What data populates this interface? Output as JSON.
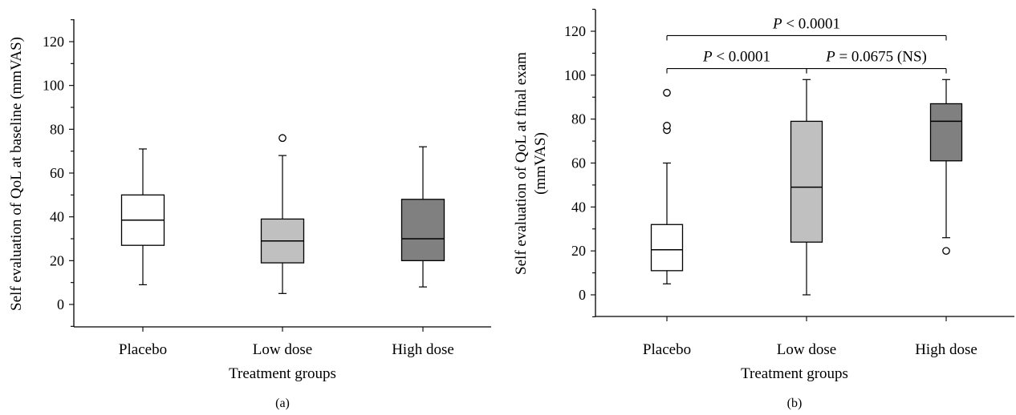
{
  "chart_data": [
    {
      "type": "box",
      "panel_label": "(a)",
      "xlabel": "Treatment groups",
      "ylabel": "Self evaluation of QoL at baseline (mmVAS)",
      "ylim": [
        -10,
        130
      ],
      "yticks": [
        0,
        20,
        40,
        60,
        80,
        100,
        120
      ],
      "categories": [
        "Placebo",
        "Low dose",
        "High dose"
      ],
      "boxes": [
        {
          "category": "Placebo",
          "whisker_low": 9,
          "q1": 27,
          "median": 38.5,
          "q3": 50,
          "whisker_high": 71,
          "outliers": [],
          "fill": "#ffffff"
        },
        {
          "category": "Low dose",
          "whisker_low": 5,
          "q1": 19,
          "median": 29,
          "q3": 39,
          "whisker_high": 68,
          "outliers": [
            76
          ],
          "fill": "#c0c0c0"
        },
        {
          "category": "High dose",
          "whisker_low": 8,
          "q1": 20,
          "median": 30,
          "q3": 48,
          "whisker_high": 72,
          "outliers": [],
          "fill": "#808080"
        }
      ],
      "annotations": []
    },
    {
      "type": "box",
      "panel_label": "(b)",
      "xlabel": "Treatment groups",
      "ylabel_lines": [
        "Self evaluation of QoL at final exam",
        "(mmVAS)"
      ],
      "ylim": [
        -10,
        130
      ],
      "yticks": [
        0,
        20,
        40,
        60,
        80,
        100,
        120
      ],
      "categories": [
        "Placebo",
        "Low dose",
        "High dose"
      ],
      "boxes": [
        {
          "category": "Placebo",
          "whisker_low": 5,
          "q1": 11,
          "median": 20.5,
          "q3": 32,
          "whisker_high": 60,
          "outliers": [
            75,
            77,
            92
          ],
          "fill": "#ffffff"
        },
        {
          "category": "Low dose",
          "whisker_low": 0,
          "q1": 24,
          "median": 49,
          "q3": 79,
          "whisker_high": 98,
          "outliers": [],
          "fill": "#c0c0c0"
        },
        {
          "category": "High dose",
          "whisker_low": 26,
          "q1": 61,
          "median": 79,
          "q3": 87,
          "whisker_high": 98,
          "outliers": [
            20
          ],
          "fill": "#808080"
        }
      ],
      "annotations": [
        {
          "from": "Placebo",
          "to": "High dose",
          "y": 118,
          "text": "P < 0.0001"
        },
        {
          "from": "Placebo",
          "to": "Low dose",
          "y": 103,
          "text": "P < 0.0001"
        },
        {
          "from": "Low dose",
          "to": "High dose",
          "y": 103,
          "text": "P = 0.0675 (NS)"
        }
      ]
    }
  ]
}
